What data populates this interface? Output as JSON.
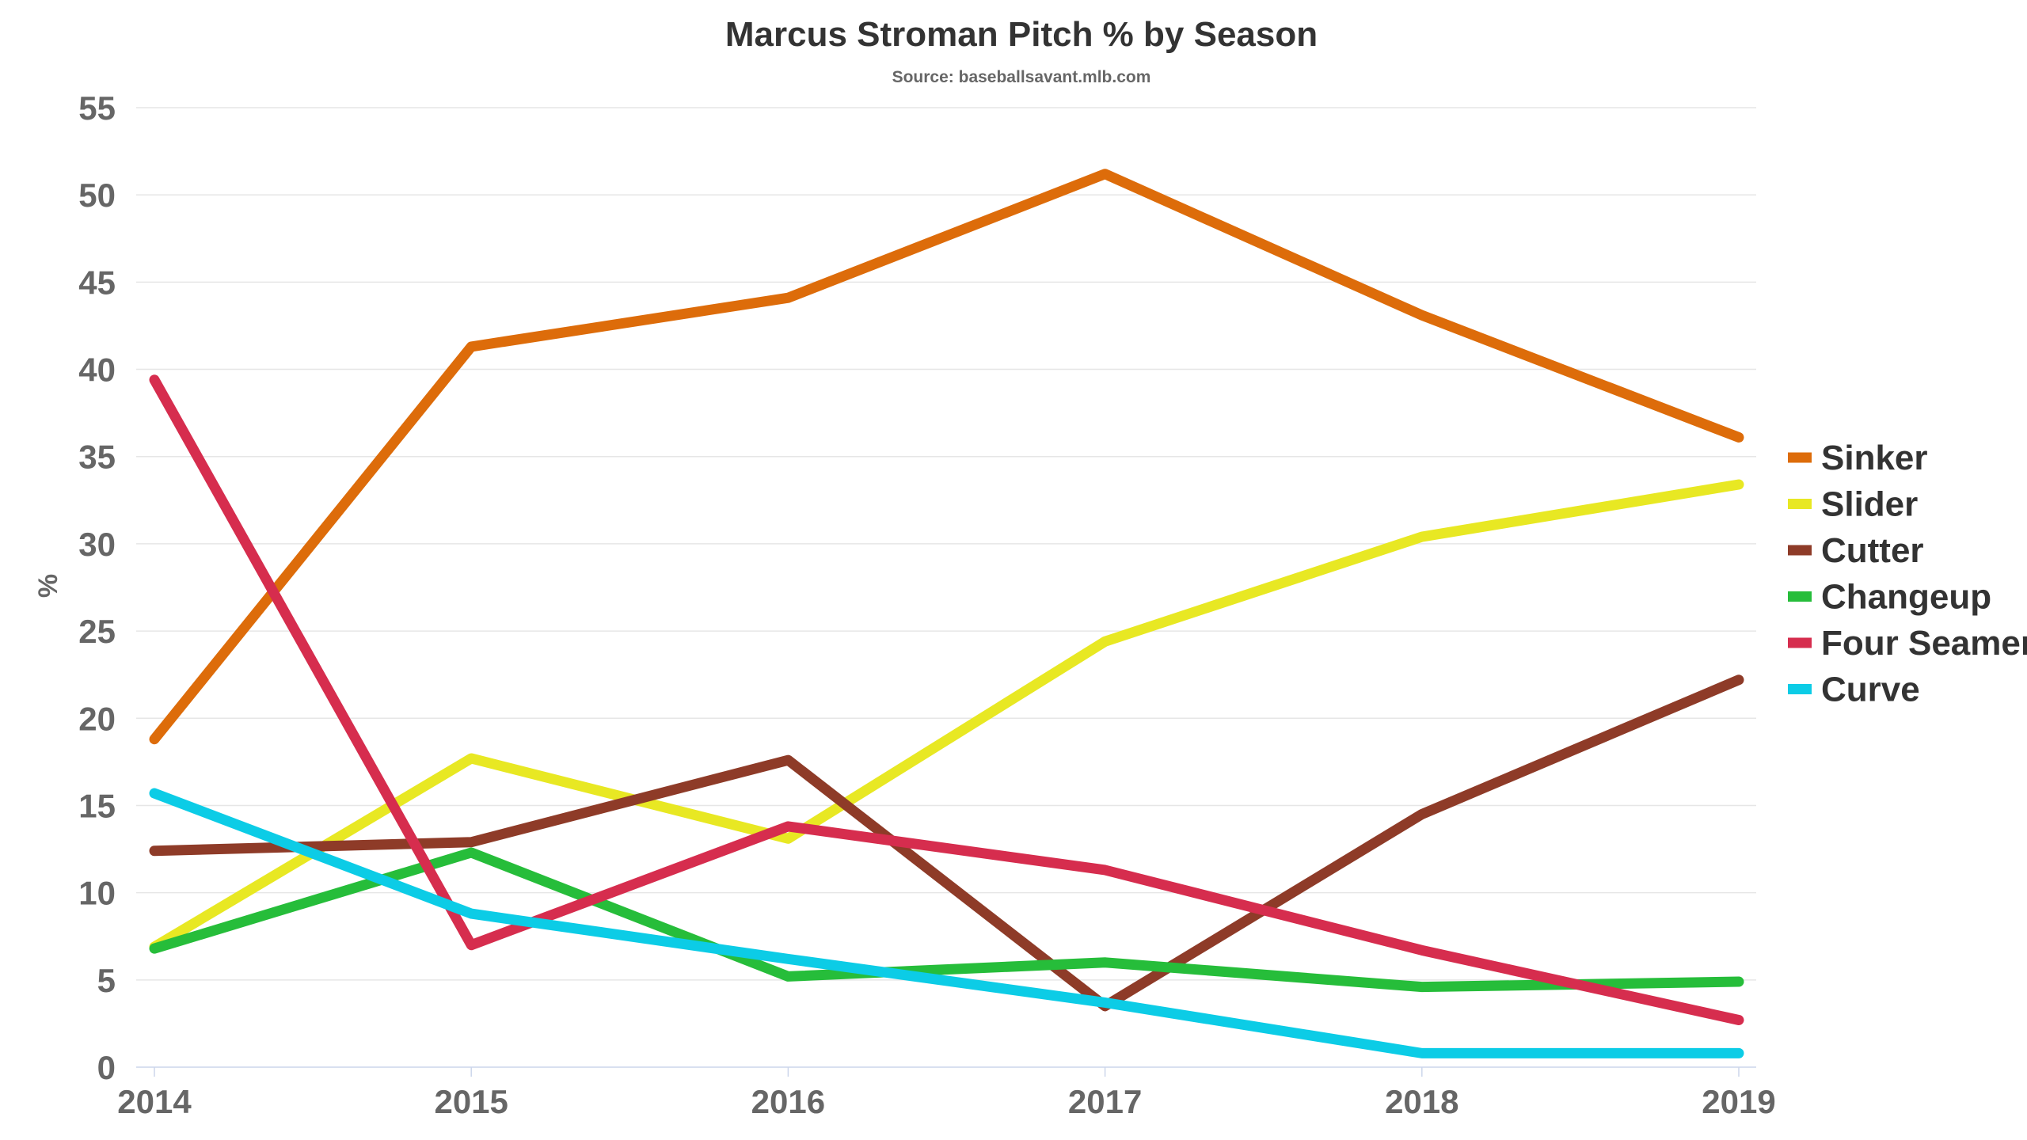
{
  "chart_data": {
    "type": "line",
    "title": "Marcus Stroman Pitch % by Season",
    "subtitle": "Source: baseballsavant.mlb.com",
    "xlabel": "",
    "ylabel": "%",
    "categories": [
      "2014",
      "2015",
      "2016",
      "2017",
      "2018",
      "2019"
    ],
    "ylim": [
      0,
      55
    ],
    "yticks": [
      0,
      5,
      10,
      15,
      20,
      25,
      30,
      35,
      40,
      45,
      50,
      55
    ],
    "grid": true,
    "legend_position": "right",
    "series": [
      {
        "name": "Sinker",
        "color": "#dd6c0a",
        "values": [
          18.8,
          41.3,
          44.1,
          51.2,
          43.1,
          36.1
        ]
      },
      {
        "name": "Slider",
        "color": "#e8e823",
        "values": [
          6.9,
          17.7,
          13.1,
          24.4,
          30.4,
          33.4
        ]
      },
      {
        "name": "Cutter",
        "color": "#8e3b28",
        "values": [
          12.4,
          12.9,
          17.6,
          3.5,
          14.5,
          22.2
        ]
      },
      {
        "name": "Changeup",
        "color": "#26bd3a",
        "values": [
          6.8,
          12.3,
          5.2,
          6.0,
          4.6,
          4.9
        ]
      },
      {
        "name": "Four Seamer",
        "color": "#d62d4e",
        "values": [
          39.4,
          7.0,
          13.8,
          11.3,
          6.7,
          2.7
        ]
      },
      {
        "name": "Curve",
        "color": "#0ccce6",
        "values": [
          15.7,
          8.8,
          6.2,
          3.7,
          0.8,
          0.8
        ]
      }
    ]
  }
}
